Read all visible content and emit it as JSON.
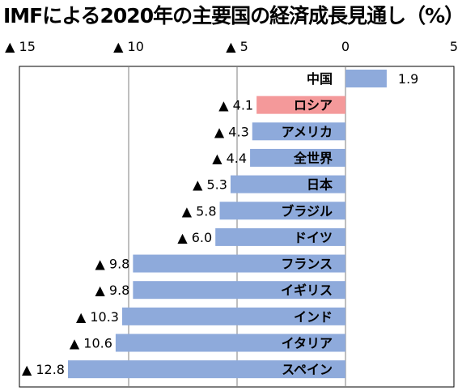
{
  "chart_data": {
    "type": "bar",
    "orientation": "horizontal",
    "title": "IMFによる2020年の主要国の経済成長見通し（%）",
    "xlim": [
      -15,
      5
    ],
    "x_ticks": [
      -15,
      -10,
      -5,
      0,
      5
    ],
    "x_tick_labels": [
      "▲ 15",
      "▲ 10",
      "▲ 5",
      "0",
      "5"
    ],
    "grid": "vertical",
    "negative_marker": "▲",
    "categories": [
      "中国",
      "ロシア",
      "アメリカ",
      "全世界",
      "日本",
      "ブラジル",
      "ドイツ",
      "フランス",
      "イギリス",
      "インド",
      "イタリア",
      "スペイン"
    ],
    "values": [
      1.9,
      -4.1,
      -4.3,
      -4.4,
      -5.3,
      -5.8,
      -6.0,
      -9.8,
      -9.8,
      -10.3,
      -10.6,
      -12.8
    ],
    "value_labels": [
      "1.9",
      "▲ 4.1",
      "▲ 4.3",
      "▲ 4.4",
      "▲ 5.3",
      "▲ 5.8",
      "▲ 6.0",
      "▲ 9.8",
      "▲ 9.8",
      "▲ 10.3",
      "▲ 10.6",
      "▲ 12.8"
    ],
    "highlight": "ロシア",
    "colors": {
      "bar": "#8eaadb",
      "highlight": "#f4999a",
      "grid": "#7f7f7f",
      "frame": "#000000"
    }
  }
}
